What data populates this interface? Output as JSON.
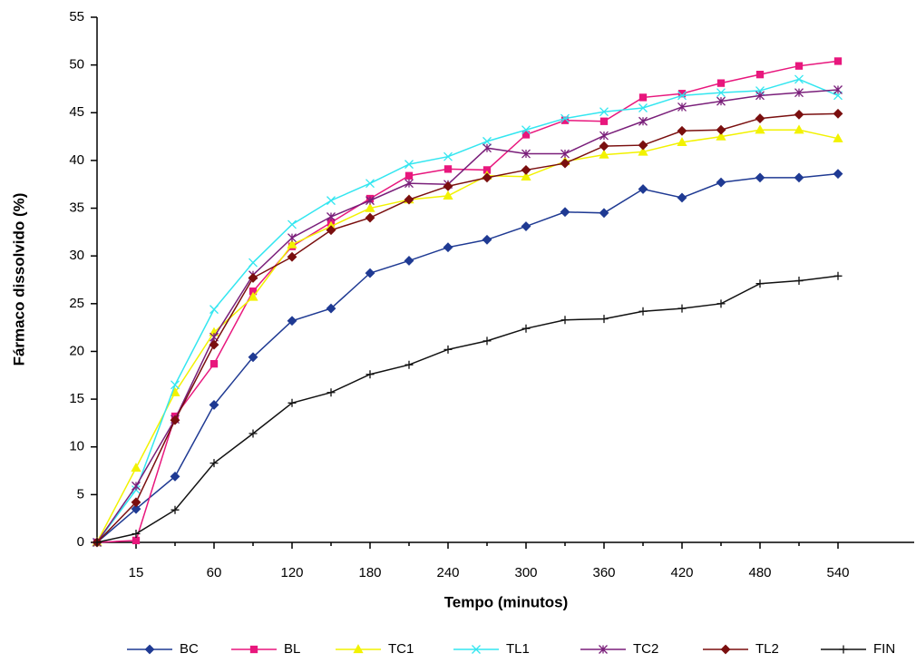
{
  "chart_data": {
    "type": "line",
    "x_label": "Tempo (minutos)",
    "y_label": "Fármaco dissolvido (%)",
    "categories": [
      null,
      "15",
      null,
      "60",
      null,
      "120",
      null,
      "180",
      null,
      "240",
      null,
      "300",
      null,
      "360",
      null,
      "420",
      null,
      "480",
      null,
      "540"
    ],
    "ylim": [
      0,
      55
    ],
    "yticks": [
      0,
      5,
      10,
      15,
      20,
      25,
      30,
      35,
      40,
      45,
      50,
      55
    ],
    "legend": "bottom",
    "series": [
      {
        "name": "BC",
        "color": "#1f3a93",
        "marker": "diamond",
        "values": [
          0,
          3.5,
          6.9,
          14.4,
          19.4,
          23.2,
          24.5,
          28.2,
          29.5,
          30.9,
          31.7,
          33.1,
          34.6,
          34.5,
          37.0,
          36.1,
          37.7,
          38.2,
          38.2,
          38.6
        ]
      },
      {
        "name": "BL",
        "color": "#e8177d",
        "marker": "square",
        "values": [
          0,
          0.2,
          13.2,
          18.7,
          26.3,
          31.0,
          33.5,
          36.0,
          38.4,
          39.1,
          39.0,
          42.7,
          44.2,
          44.1,
          46.6,
          47.0,
          48.1,
          49.0,
          49.9,
          50.4
        ]
      },
      {
        "name": "TC1",
        "color": "#f2f200",
        "marker": "triangle",
        "values": [
          0,
          7.8,
          15.7,
          22.0,
          25.7,
          31.2,
          33.1,
          35.0,
          35.9,
          36.3,
          38.4,
          38.3,
          39.9,
          40.6,
          40.9,
          41.9,
          42.5,
          43.2,
          43.2,
          42.3
        ]
      },
      {
        "name": "TL1",
        "color": "#33e6f0",
        "marker": "x",
        "values": [
          0,
          5.5,
          16.5,
          24.4,
          29.3,
          33.3,
          35.8,
          37.6,
          39.6,
          40.4,
          42.0,
          43.2,
          44.4,
          45.1,
          45.5,
          46.8,
          47.1,
          47.3,
          48.5,
          46.8
        ]
      },
      {
        "name": "TC2",
        "color": "#7a1f7a",
        "marker": "star",
        "values": [
          0,
          5.9,
          12.9,
          21.5,
          28.0,
          31.9,
          34.1,
          35.8,
          37.6,
          37.5,
          41.3,
          40.7,
          40.7,
          42.6,
          44.1,
          45.6,
          46.2,
          46.8,
          47.1,
          47.4
        ]
      },
      {
        "name": "TL2",
        "color": "#7a0f0f",
        "marker": "diamond",
        "values": [
          0,
          4.2,
          12.8,
          20.7,
          27.7,
          29.9,
          32.7,
          34.0,
          35.9,
          37.3,
          38.2,
          39.0,
          39.7,
          41.5,
          41.6,
          43.1,
          43.2,
          44.4,
          44.8,
          44.9
        ]
      },
      {
        "name": "FIN",
        "color": "#111111",
        "marker": "plus",
        "values": [
          0,
          0.9,
          3.4,
          8.3,
          11.4,
          14.6,
          15.7,
          17.6,
          18.6,
          20.2,
          21.1,
          22.4,
          23.3,
          23.4,
          24.2,
          24.5,
          25.0,
          27.1,
          27.4,
          27.9
        ]
      }
    ]
  }
}
